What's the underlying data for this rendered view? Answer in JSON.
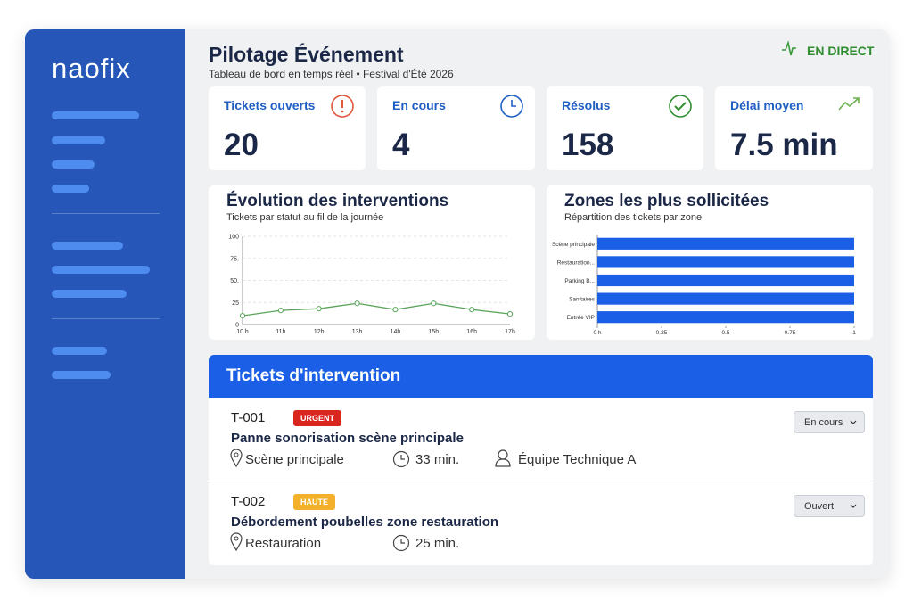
{
  "sidebar": {
    "logo": "naofix"
  },
  "header": {
    "title": "Pilotage Événement",
    "subtitle": "Tableau de bord en temps réel • Festival d'Été 2026",
    "status": "EN DIRECT"
  },
  "kpis": [
    {
      "label": "Tickets ouverts",
      "value": 20
    },
    {
      "label": "En cours",
      "value": 4
    },
    {
      "label": "Résolus",
      "value": 158
    },
    {
      "label": "Délai moyen",
      "value": "7.5 min"
    }
  ],
  "chart_data": [
    {
      "type": "line",
      "title": "Évolution des interventions",
      "subtitle": "Tickets par statut au fil de la journée",
      "categories": [
        "10 h",
        "11h",
        "12h",
        "13h",
        "14h",
        "15h",
        "16h",
        "17h"
      ],
      "values": [
        10,
        16,
        18,
        24,
        17,
        24,
        17,
        12
      ],
      "color": "#5aa55a",
      "ylim": [
        0,
        100
      ],
      "yticks": [
        0,
        25,
        {
          "value": 50,
          "label": "50."
        },
        {
          "value": 75,
          "label": "75."
        },
        100
      ],
      "grid": true
    },
    {
      "type": "bar",
      "orientation": "horizontal",
      "title": "Zones les plus sollicitées",
      "subtitle": "Répartition des tickets par zone",
      "categories": [
        "Scène principale",
        "Restauration...",
        "Parking B...",
        "Sanitaires",
        "Entrée VIP"
      ],
      "values": [
        1,
        1,
        1,
        1,
        1
      ],
      "color": "#1a5fe6",
      "xlim": [
        0,
        1
      ],
      "xticks": [
        {
          "value": 0,
          "label": "0 h"
        },
        0.25,
        0.5,
        0.75,
        1
      ]
    }
  ],
  "tickets": {
    "title": "Tickets d'intervention",
    "rows": [
      {
        "id": "T-001",
        "priority": "URGENT",
        "title": "Panne sonorisation scène principale",
        "location": "Scène principale",
        "duration": "33 min.",
        "team": "Équipe Technique A",
        "status": "En cours"
      },
      {
        "id": "T-002",
        "priority": "HAUTE",
        "title": "Débordement poubelles zone restauration",
        "location": "Restauration",
        "duration": "25 min.",
        "status": "Ouvert"
      }
    ]
  }
}
